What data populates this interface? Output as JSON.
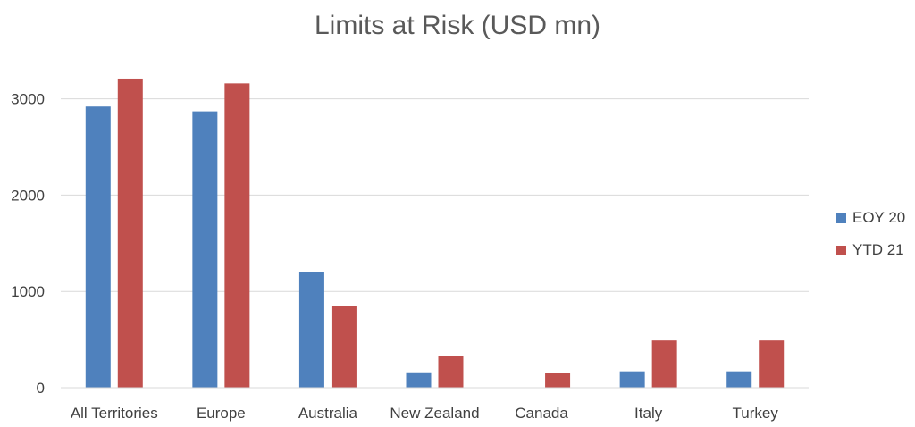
{
  "chart_data": {
    "type": "bar",
    "title": "Limits at Risk (USD mn)",
    "xlabel": "",
    "ylabel": "",
    "categories": [
      "All Territories",
      "Europe",
      "Australia",
      "New Zealand",
      "Canada",
      "Italy",
      "Turkey"
    ],
    "series": [
      {
        "name": "EOY 20",
        "color": "#4f81bd",
        "values": [
          2920,
          2870,
          1200,
          160,
          0,
          170,
          170
        ]
      },
      {
        "name": "YTD 21",
        "color": "#c0504d",
        "values": [
          3210,
          3160,
          850,
          330,
          150,
          490,
          490
        ]
      }
    ],
    "yticks": [
      0,
      1000,
      2000,
      3000
    ],
    "ylim": [
      0,
      3000
    ],
    "grid": true,
    "legend_position": "right"
  }
}
